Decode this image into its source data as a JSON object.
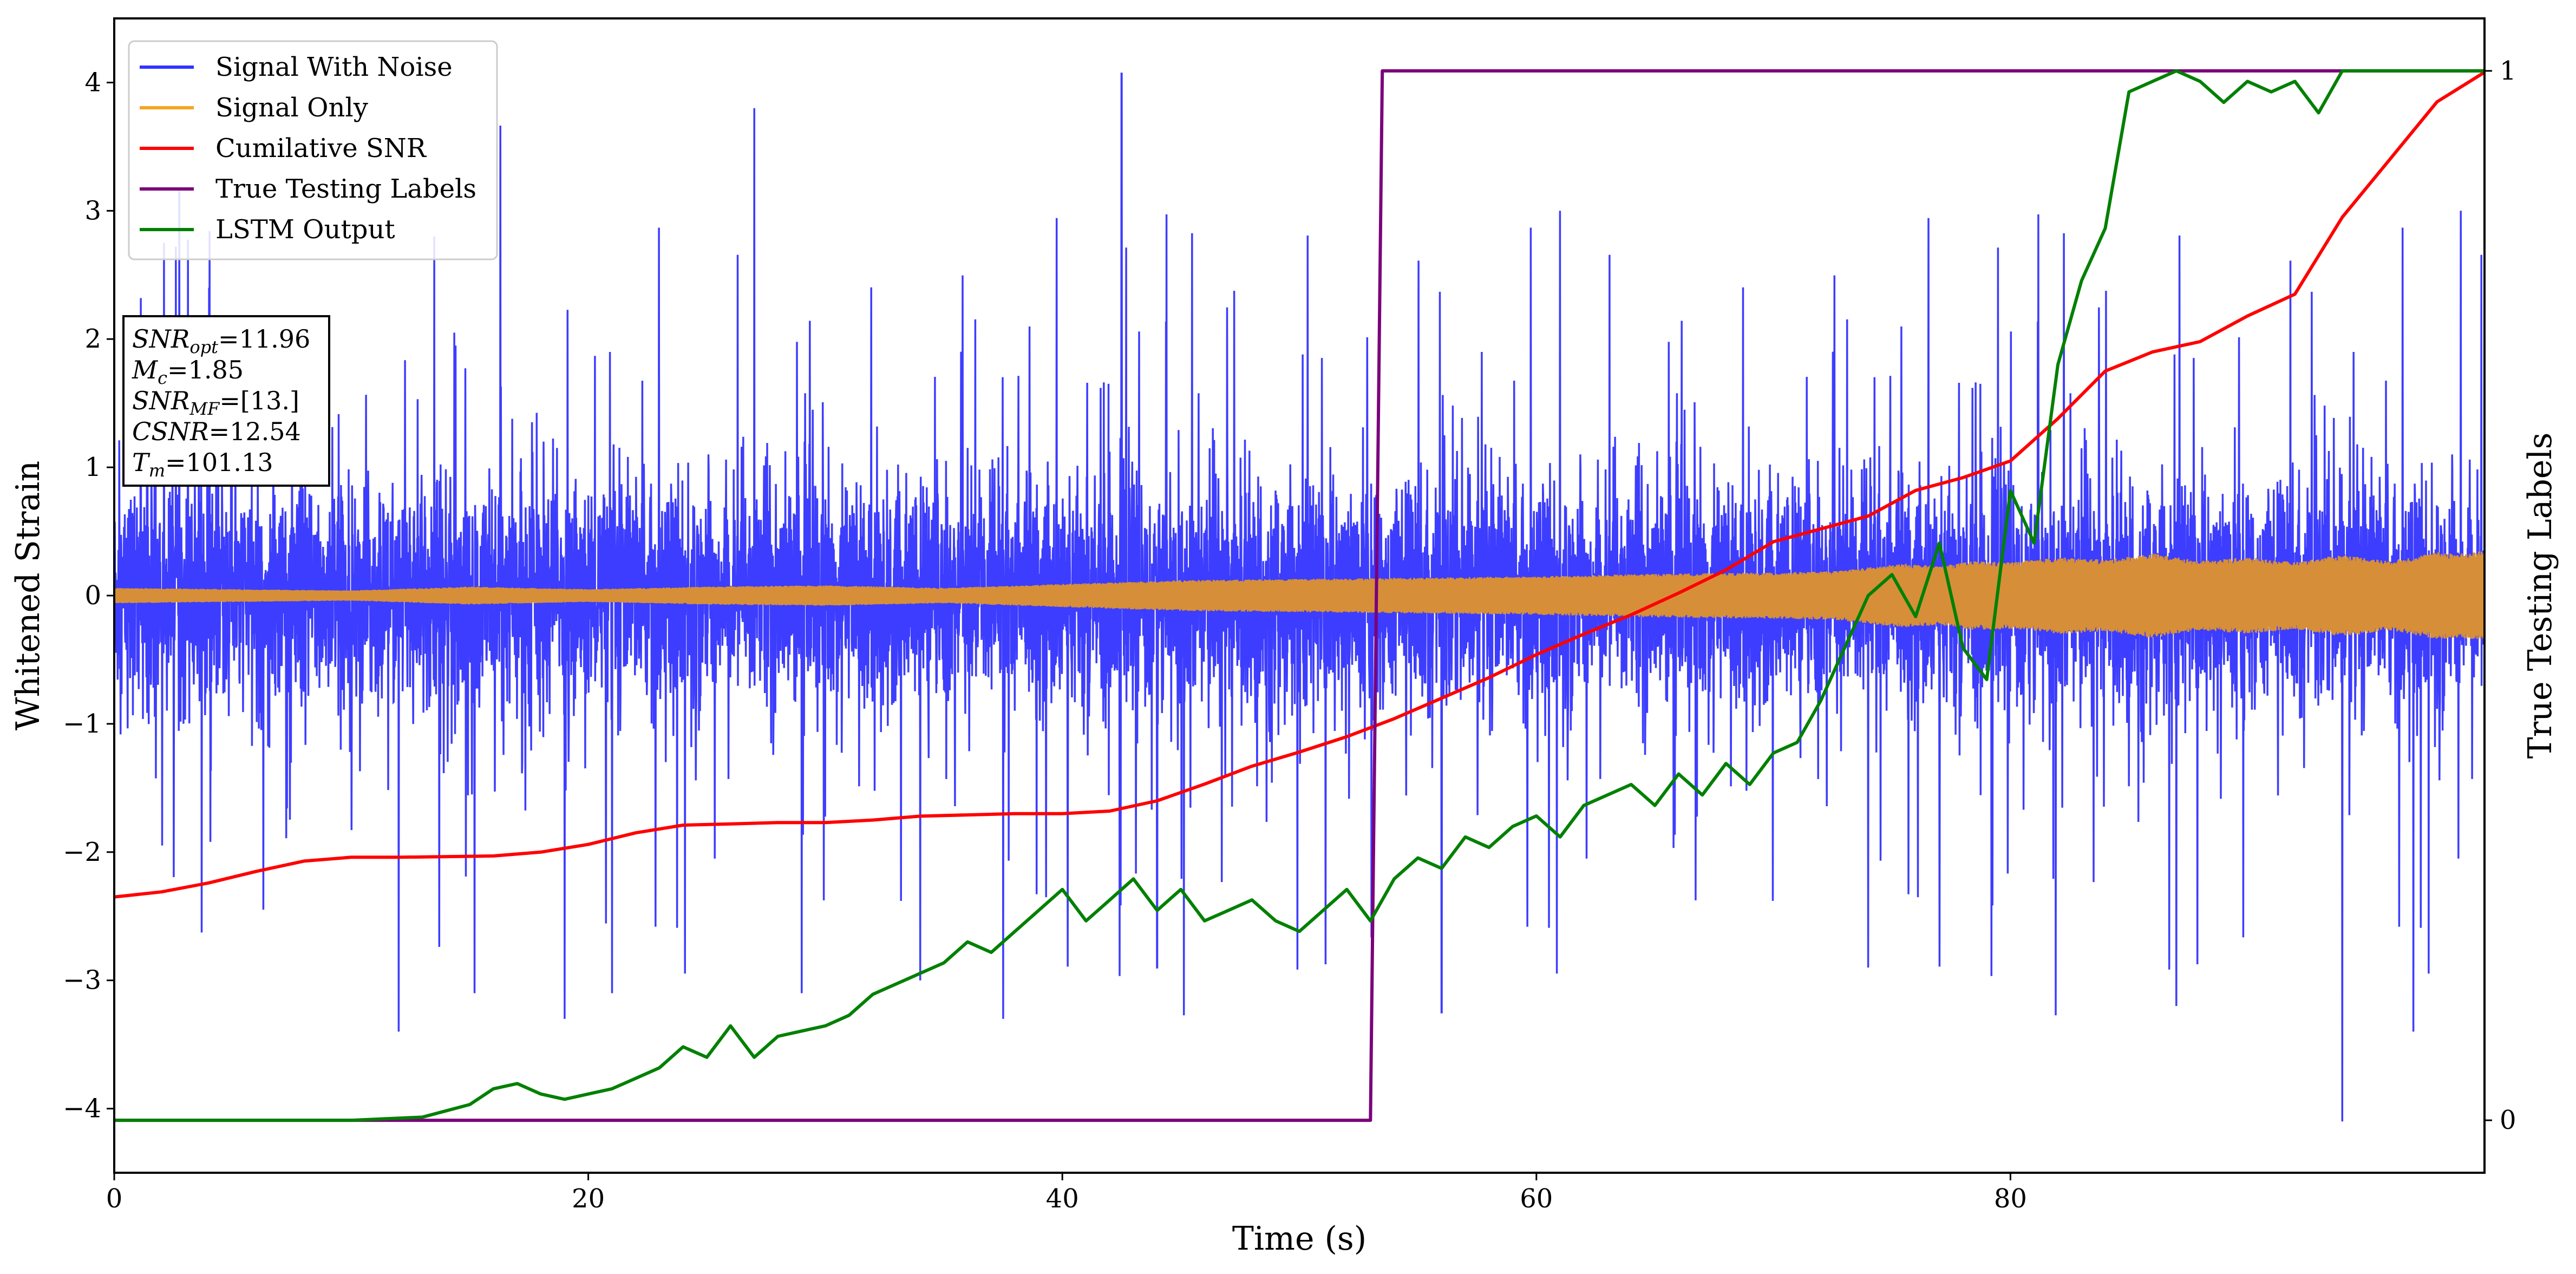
{
  "chart_data": {
    "type": "line",
    "xlabel": "Time (s)",
    "ylabel": "Whitened Strain",
    "y2label": "True Testing Labels",
    "xlim": [
      0,
      100
    ],
    "ylim": [
      -4.5,
      4.5
    ],
    "y2lim": [
      -0.05,
      1.05
    ],
    "xticks": [
      0,
      20,
      40,
      60,
      80
    ],
    "yticks": [
      -4,
      -3,
      -2,
      -1,
      0,
      1,
      2,
      3,
      4
    ],
    "y2ticks": [
      0,
      1
    ],
    "ytick_labels": [
      "−4",
      "−3",
      "−2",
      "−1",
      "0",
      "1",
      "2",
      "3",
      "4"
    ],
    "legend_position": "upper-left",
    "series": [
      {
        "name": "Signal With Noise",
        "color": "#3333ff",
        "axis": "left",
        "kind": "noise",
        "amplitude_sd": 0.75,
        "spikes": [
          [
            2.1,
            2.75
          ],
          [
            4.0,
            2.4
          ],
          [
            12.0,
            -3.4
          ],
          [
            13.5,
            2.8
          ],
          [
            15.2,
            -3.1
          ],
          [
            19.0,
            -3.3
          ],
          [
            21.0,
            -3.1
          ],
          [
            27.0,
            3.8
          ],
          [
            29.0,
            -3.1
          ],
          [
            34.0,
            -3.0
          ],
          [
            37.5,
            -3.3
          ],
          [
            42.5,
            4.07
          ],
          [
            44.0,
            -2.9
          ],
          [
            56.0,
            -3.25
          ],
          [
            61.0,
            3.0
          ],
          [
            74.0,
            -2.9
          ],
          [
            87.0,
            -3.2
          ],
          [
            94.0,
            -4.1
          ],
          [
            97.0,
            -3.4
          ],
          [
            99.0,
            3.0
          ]
        ]
      },
      {
        "name": "Signal Only",
        "color": "#f5a623",
        "axis": "left",
        "kind": "envelope",
        "x": [
          0,
          5,
          10,
          15,
          20,
          25,
          30,
          35,
          40,
          45,
          50,
          55,
          60,
          65,
          70,
          72.5,
          74,
          75.5,
          77,
          78.5,
          80,
          82,
          84,
          86,
          88,
          90,
          92,
          94,
          96,
          98,
          99,
          100
        ],
        "envelope": [
          0.06,
          0.05,
          0.04,
          0.07,
          0.05,
          0.07,
          0.08,
          0.06,
          0.09,
          0.12,
          0.13,
          0.14,
          0.15,
          0.17,
          0.18,
          0.19,
          0.22,
          0.25,
          0.23,
          0.27,
          0.26,
          0.3,
          0.28,
          0.33,
          0.27,
          0.3,
          0.26,
          0.32,
          0.27,
          0.34,
          0.33,
          0.35
        ]
      },
      {
        "name": "Cumilative SNR",
        "color": "#ff0000",
        "axis": "left",
        "kind": "line",
        "x": [
          0,
          2,
          4,
          6,
          8,
          10,
          12,
          16,
          18,
          20,
          22,
          24,
          26,
          28,
          30,
          32,
          34,
          36,
          38,
          40,
          42,
          44,
          46,
          48,
          50,
          52,
          54,
          56,
          58,
          60,
          62,
          64,
          66,
          68,
          70,
          72,
          74,
          76,
          78,
          80,
          82,
          84,
          86,
          88,
          90,
          92,
          94,
          96,
          98,
          100
        ],
        "y": [
          -2.35,
          -2.31,
          -2.24,
          -2.15,
          -2.07,
          -2.04,
          -2.04,
          -2.03,
          -2.0,
          -1.94,
          -1.85,
          -1.79,
          -1.78,
          -1.77,
          -1.77,
          -1.75,
          -1.72,
          -1.71,
          -1.7,
          -1.7,
          -1.68,
          -1.6,
          -1.47,
          -1.33,
          -1.22,
          -1.1,
          -0.96,
          -0.8,
          -0.64,
          -0.46,
          -0.3,
          -0.15,
          0.02,
          0.2,
          0.42,
          0.52,
          0.62,
          0.82,
          0.92,
          1.05,
          1.38,
          1.75,
          1.9,
          1.98,
          2.18,
          2.35,
          2.95,
          3.4,
          3.85,
          4.08
        ]
      },
      {
        "name": "True Testing Labels",
        "color": "#7b007b",
        "axis": "right",
        "kind": "line",
        "x": [
          0,
          53.0,
          53.5,
          100
        ],
        "y": [
          0,
          0,
          1,
          1
        ]
      },
      {
        "name": "LSTM Output",
        "color": "#008000",
        "axis": "right",
        "kind": "line",
        "x": [
          0,
          5,
          10,
          13,
          15,
          16,
          17,
          18,
          19,
          20,
          21,
          22,
          23,
          24,
          25,
          26,
          27,
          28,
          29,
          30,
          31,
          32,
          33,
          34,
          35,
          36,
          37,
          38,
          39,
          40,
          41,
          42,
          43,
          44,
          45,
          46,
          47,
          48,
          49,
          50,
          51,
          52,
          53,
          54,
          55,
          56,
          57,
          58,
          59,
          60,
          61,
          62,
          63,
          64,
          65,
          66,
          67,
          68,
          69,
          70,
          71,
          72,
          73,
          74,
          75,
          76,
          77,
          78,
          79,
          80,
          81,
          82,
          83,
          84,
          85,
          86,
          87,
          88,
          89,
          90,
          91,
          92,
          93,
          94,
          95,
          100
        ],
        "y": [
          0,
          0,
          0,
          0.003,
          0.015,
          0.03,
          0.035,
          0.025,
          0.02,
          0.025,
          0.03,
          0.04,
          0.05,
          0.07,
          0.06,
          0.09,
          0.06,
          0.08,
          0.085,
          0.09,
          0.1,
          0.12,
          0.13,
          0.14,
          0.15,
          0.17,
          0.16,
          0.18,
          0.2,
          0.22,
          0.19,
          0.21,
          0.23,
          0.2,
          0.22,
          0.19,
          0.2,
          0.21,
          0.19,
          0.18,
          0.2,
          0.22,
          0.19,
          0.23,
          0.25,
          0.24,
          0.27,
          0.26,
          0.28,
          0.29,
          0.27,
          0.3,
          0.31,
          0.32,
          0.3,
          0.33,
          0.31,
          0.34,
          0.32,
          0.35,
          0.36,
          0.4,
          0.45,
          0.5,
          0.52,
          0.48,
          0.55,
          0.45,
          0.42,
          0.6,
          0.55,
          0.72,
          0.8,
          0.85,
          0.98,
          0.99,
          1.0,
          0.99,
          0.97,
          0.99,
          0.98,
          0.99,
          0.96,
          1.0,
          1.0,
          1.0
        ]
      }
    ],
    "annotation": {
      "lines": [
        {
          "main": "SNR",
          "sub": "opt",
          "value": "=11.96"
        },
        {
          "main": "M",
          "sub": "c",
          "value": "=1.85"
        },
        {
          "main": "SNR",
          "sub": "MF",
          "value": "=[13.]"
        },
        {
          "main": "CSNR",
          "sub": "",
          "value": "=12.54"
        },
        {
          "main": "T",
          "sub": "m",
          "value": "=101.13"
        }
      ]
    }
  }
}
